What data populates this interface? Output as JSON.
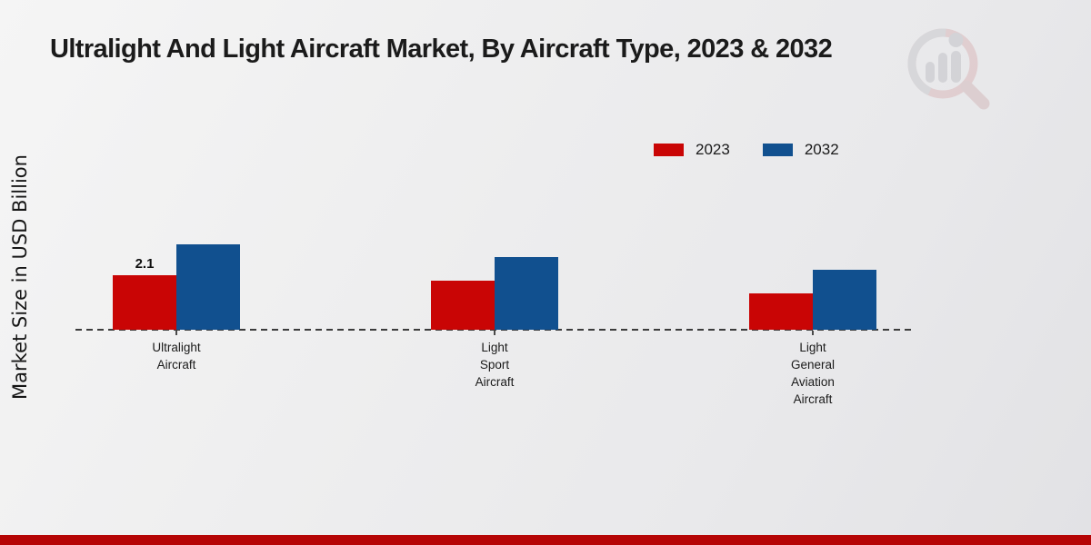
{
  "title": "Ultralight And Light Aircraft Market, By Aircraft Type, 2023 & 2032",
  "ylabel": "Market Size in USD Billion",
  "legend": {
    "items": [
      {
        "label": "2023",
        "color": "#c90505"
      },
      {
        "label": "2032",
        "color": "#11508f"
      }
    ]
  },
  "chart_data": {
    "type": "bar",
    "title": "Ultralight And Light Aircraft Market, By Aircraft Type, 2023 & 2032",
    "xlabel": "",
    "ylabel": "Market Size in USD Billion",
    "categories": [
      "Ultralight Aircraft",
      "Light Sport Aircraft",
      "Light General Aviation Aircraft"
    ],
    "tick_labels": [
      "Ultralight\nAircraft",
      "Light\nSport\nAircraft",
      "Light\nGeneral\nAviation\nAircraft"
    ],
    "series": [
      {
        "name": "2023",
        "color": "#c90505",
        "values": [
          2.1,
          1.9,
          1.4
        ]
      },
      {
        "name": "2032",
        "color": "#11508f",
        "values": [
          3.3,
          2.8,
          2.3
        ]
      }
    ],
    "bar_labels": [
      {
        "series": "2023",
        "category_index": 0,
        "text": "2.1"
      }
    ],
    "ylim": [
      0,
      3.5
    ],
    "grid": false,
    "legend_position": "upper right",
    "baseline_style": "dashed",
    "y_axis_ticks_visible": false
  },
  "watermark": {
    "name": "market-research-magnifier-logo"
  },
  "footer": {
    "accent_color": "#b50505"
  }
}
